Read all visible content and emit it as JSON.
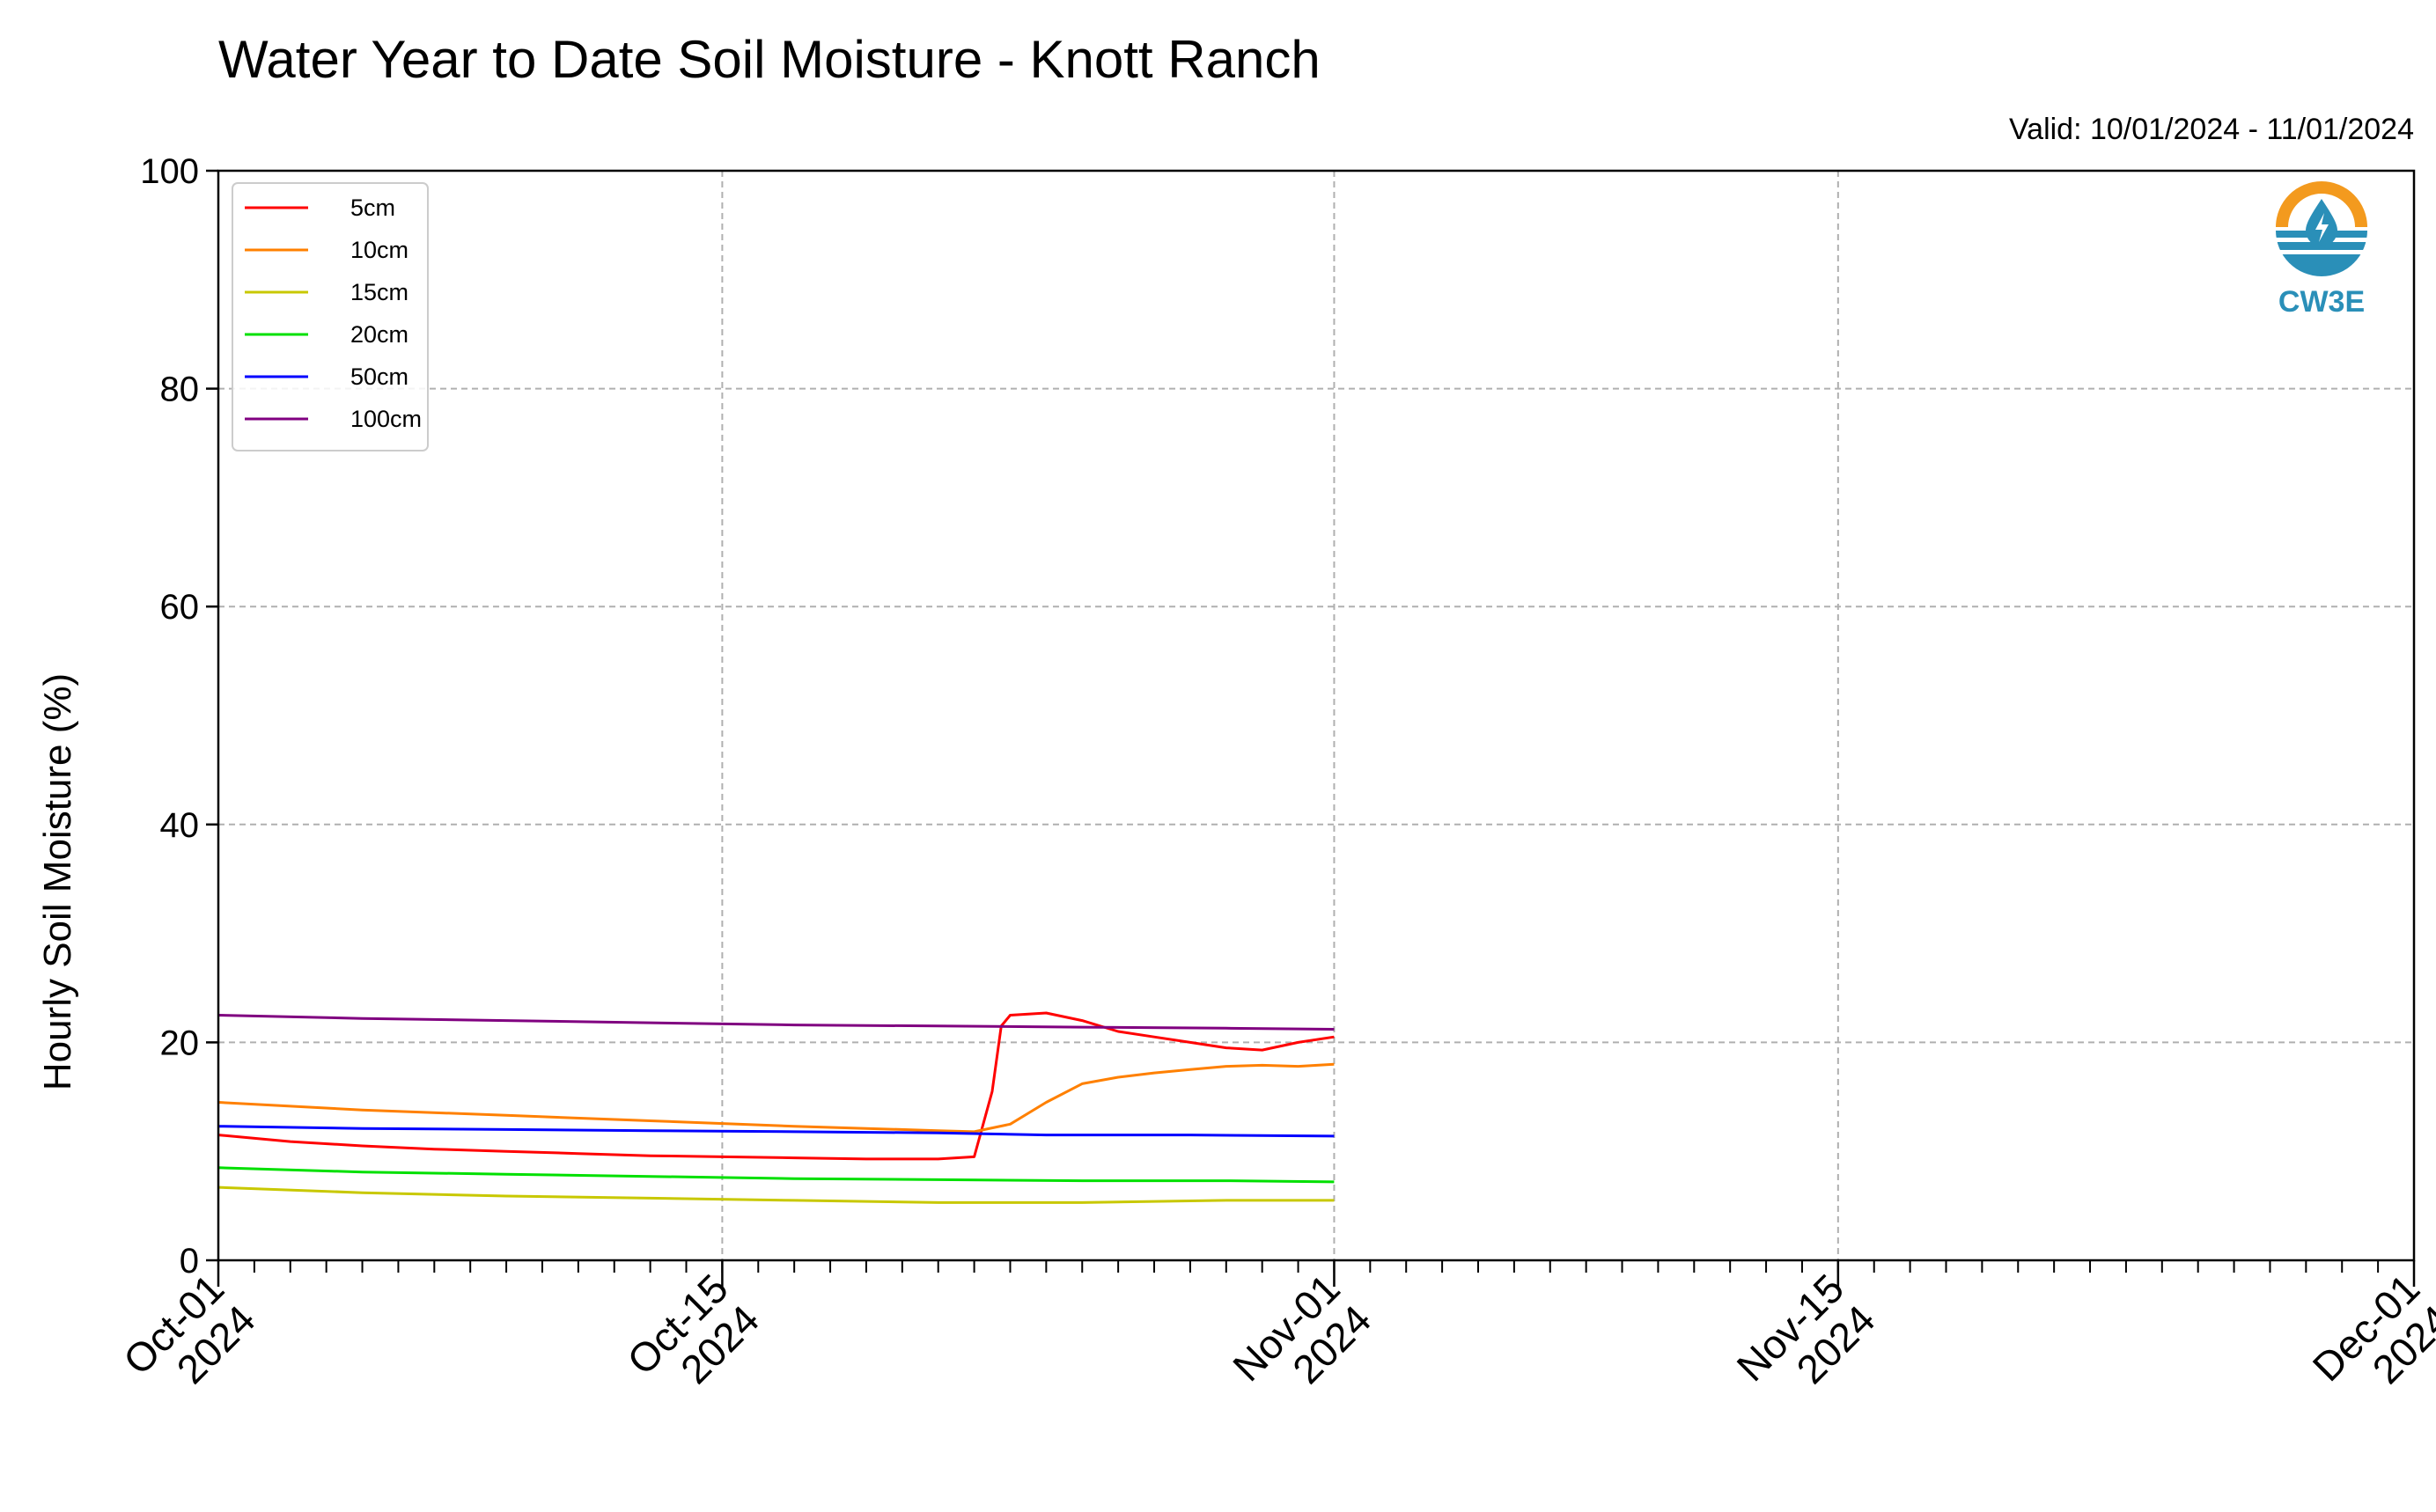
{
  "chart_data": {
    "type": "line",
    "title": "Water Year to Date Soil Moisture - Knott Ranch",
    "subtitle": "Valid: 10/01/2024 - 11/01/2024",
    "xlabel": "",
    "ylabel": "Hourly Soil Moisture (%)",
    "ylim": [
      0,
      100
    ],
    "yticks": [
      0,
      20,
      40,
      60,
      80,
      100
    ],
    "xlim": [
      "2024-10-01",
      "2024-12-01"
    ],
    "xticks": [
      {
        "date": "2024-10-01",
        "line1": "Oct-01",
        "line2": "2024"
      },
      {
        "date": "2024-10-15",
        "line1": "Oct-15",
        "line2": "2024"
      },
      {
        "date": "2024-11-01",
        "line1": "Nov-01",
        "line2": "2024"
      },
      {
        "date": "2024-11-15",
        "line1": "Nov-15",
        "line2": "2024"
      },
      {
        "date": "2024-12-01",
        "line1": "Dec-01",
        "line2": "2024"
      }
    ],
    "grid": true,
    "legend_position": "top-left",
    "series": [
      {
        "name": "5cm",
        "color": "#ff0000",
        "x": [
          "2024-10-01",
          "2024-10-03",
          "2024-10-05",
          "2024-10-07",
          "2024-10-09",
          "2024-10-11",
          "2024-10-13",
          "2024-10-15",
          "2024-10-17",
          "2024-10-19",
          "2024-10-21",
          "2024-10-22",
          "2024-10-22T12",
          "2024-10-22T18",
          "2024-10-23",
          "2024-10-24",
          "2024-10-25",
          "2024-10-26",
          "2024-10-27",
          "2024-10-28",
          "2024-10-29",
          "2024-10-30",
          "2024-10-31",
          "2024-11-01"
        ],
        "y": [
          11.5,
          10.9,
          10.5,
          10.2,
          10.0,
          9.8,
          9.6,
          9.5,
          9.4,
          9.3,
          9.3,
          9.5,
          15.5,
          21.5,
          22.5,
          22.7,
          22.0,
          21.0,
          20.5,
          20.0,
          19.5,
          19.3,
          20.0,
          20.5
        ]
      },
      {
        "name": "10cm",
        "color": "#ff8000",
        "x": [
          "2024-10-01",
          "2024-10-05",
          "2024-10-09",
          "2024-10-13",
          "2024-10-17",
          "2024-10-21",
          "2024-10-22",
          "2024-10-23",
          "2024-10-24",
          "2024-10-25",
          "2024-10-26",
          "2024-10-27",
          "2024-10-28",
          "2024-10-29",
          "2024-10-30",
          "2024-10-31",
          "2024-11-01"
        ],
        "y": [
          14.5,
          13.8,
          13.3,
          12.8,
          12.3,
          11.9,
          11.8,
          12.5,
          14.5,
          16.2,
          16.8,
          17.2,
          17.5,
          17.8,
          17.9,
          17.8,
          18.0
        ]
      },
      {
        "name": "15cm",
        "color": "#c8c800",
        "x": [
          "2024-10-01",
          "2024-10-05",
          "2024-10-09",
          "2024-10-13",
          "2024-10-17",
          "2024-10-21",
          "2024-10-25",
          "2024-10-29",
          "2024-11-01"
        ],
        "y": [
          6.7,
          6.2,
          5.9,
          5.7,
          5.5,
          5.3,
          5.3,
          5.5,
          5.5
        ]
      },
      {
        "name": "20cm",
        "color": "#00e000",
        "x": [
          "2024-10-01",
          "2024-10-05",
          "2024-10-09",
          "2024-10-13",
          "2024-10-17",
          "2024-10-21",
          "2024-10-25",
          "2024-10-29",
          "2024-11-01"
        ],
        "y": [
          8.5,
          8.1,
          7.9,
          7.7,
          7.5,
          7.4,
          7.3,
          7.3,
          7.2
        ]
      },
      {
        "name": "50cm",
        "color": "#0000ff",
        "x": [
          "2024-10-01",
          "2024-10-05",
          "2024-10-09",
          "2024-10-13",
          "2024-10-17",
          "2024-10-21",
          "2024-10-24",
          "2024-10-28",
          "2024-11-01"
        ],
        "y": [
          12.3,
          12.1,
          12.0,
          11.9,
          11.8,
          11.7,
          11.5,
          11.5,
          11.4
        ]
      },
      {
        "name": "100cm",
        "color": "#800080",
        "x": [
          "2024-10-01",
          "2024-10-05",
          "2024-10-09",
          "2024-10-13",
          "2024-10-17",
          "2024-10-21",
          "2024-10-25",
          "2024-10-29",
          "2024-11-01"
        ],
        "y": [
          22.5,
          22.2,
          22.0,
          21.8,
          21.6,
          21.5,
          21.4,
          21.3,
          21.2
        ]
      }
    ]
  },
  "logo": {
    "text": "CW3E",
    "icon": "water-drop-logo-icon",
    "accent_color": "#f39a1e",
    "brand_color": "#2a8fb8"
  }
}
